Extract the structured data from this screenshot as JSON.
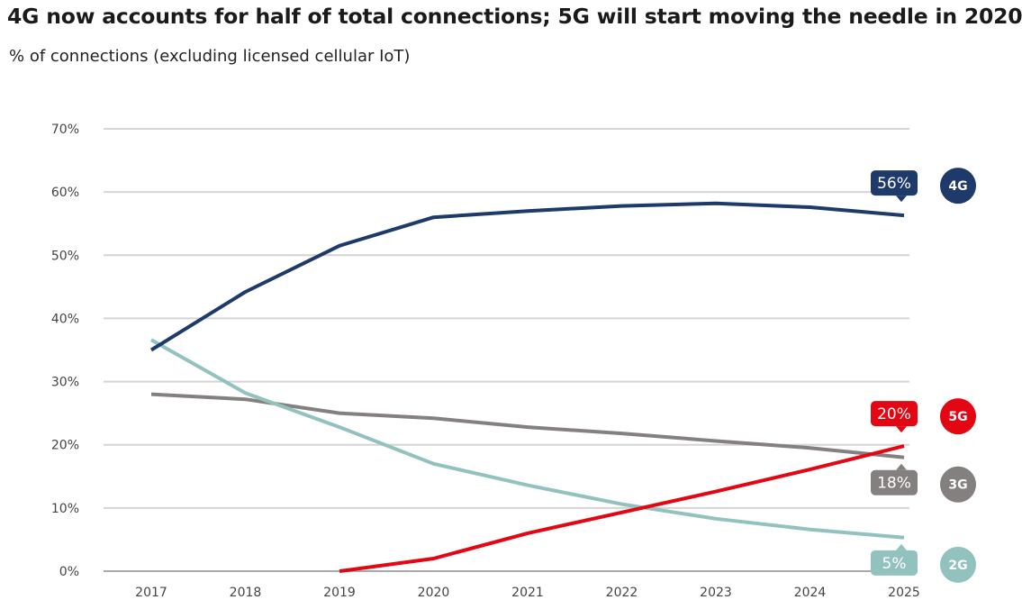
{
  "chart_data": {
    "type": "line",
    "title": "4G now accounts for half of total connections; 5G will start moving the needle in 2020",
    "subtitle": "% of connections (excluding licensed cellular IoT)",
    "xlabel": "",
    "ylabel": "",
    "x": [
      "2017",
      "2018",
      "2019",
      "2020",
      "2021",
      "2022",
      "2023",
      "2024",
      "2025"
    ],
    "ylim": [
      0,
      70
    ],
    "yticks": [
      0,
      10,
      20,
      30,
      40,
      50,
      60,
      70
    ],
    "ytick_labels": [
      "0%",
      "10%",
      "20%",
      "30%",
      "40%",
      "50%",
      "60%",
      "70%"
    ],
    "grid": "horizontal",
    "series": [
      {
        "name": "4G",
        "color": "#1e3a6b",
        "values": [
          35,
          44.2,
          51.5,
          56,
          57,
          57.8,
          58.2,
          57.6,
          56.3
        ],
        "end_label": "56%"
      },
      {
        "name": "5G",
        "color": "#e30613",
        "values": [
          null,
          null,
          0,
          2,
          6,
          9.3,
          12.6,
          16.1,
          19.8
        ],
        "end_label": "20%"
      },
      {
        "name": "3G",
        "color": "#858080",
        "values": [
          28,
          27.2,
          25,
          24.2,
          22.8,
          21.8,
          20.6,
          19.5,
          18
        ],
        "end_label": "18%"
      },
      {
        "name": "2G",
        "color": "#92c2bd",
        "values": [
          36.6,
          28.2,
          22.8,
          17,
          13.6,
          10.6,
          8.3,
          6.6,
          5.3
        ],
        "end_label": "5%"
      }
    ]
  }
}
